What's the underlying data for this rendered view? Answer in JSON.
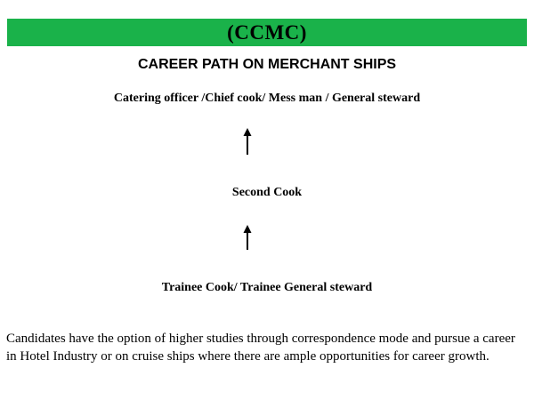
{
  "banner": {
    "title": "(CCMC)",
    "color": "#1ab24a"
  },
  "heading": "CAREER PATH ON MERCHANT SHIPS",
  "career_path": {
    "levels": [
      "Catering officer /Chief cook/ Mess man / General steward",
      "Second Cook",
      "Trainee Cook/ Trainee General steward"
    ],
    "connector_icon": "arrow-up-icon"
  },
  "footer_text": "Candidates have the option of  higher studies through correspondence mode and pursue a career in Hotel Industry or on cruise ships where there are ample opportunities for career growth."
}
